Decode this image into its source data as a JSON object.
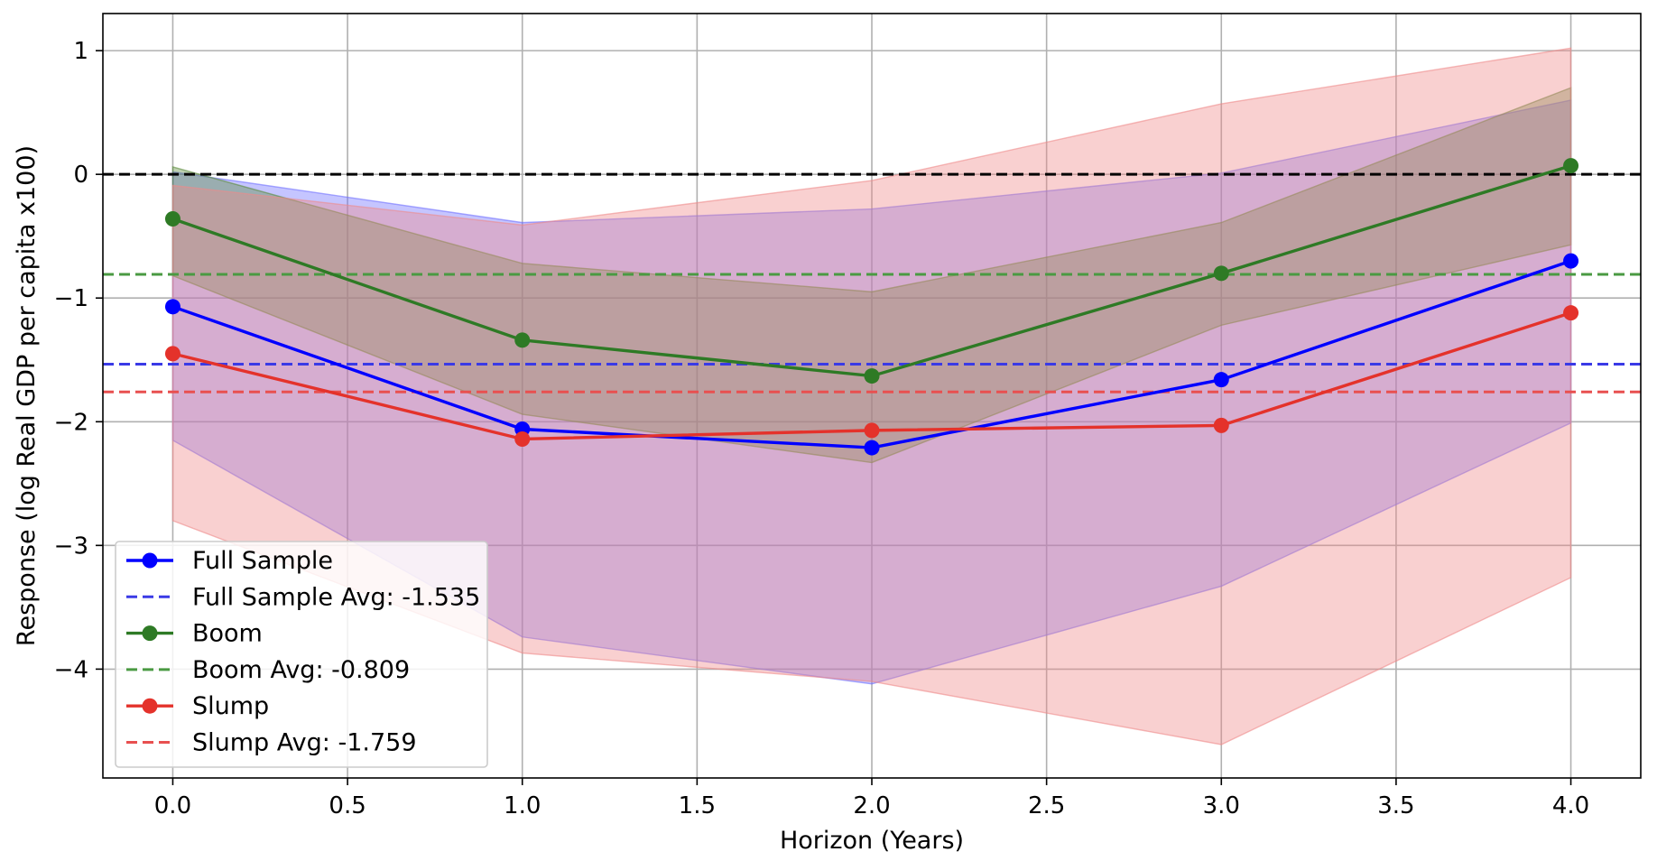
{
  "chart_data": {
    "type": "line",
    "xlabel": "Horizon (Years)",
    "ylabel": "Response (log Real GDP per capita x100)",
    "x": [
      0,
      1,
      2,
      3,
      4
    ],
    "xlim": [
      -0.2,
      4.2
    ],
    "ylim": [
      -4.88,
      1.3
    ],
    "xticks": [
      "0.0",
      "0.5",
      "1.0",
      "1.5",
      "2.0",
      "2.5",
      "3.0",
      "3.5",
      "4.0"
    ],
    "xtick_values": [
      0,
      0.5,
      1,
      1.5,
      2,
      2.5,
      3,
      3.5,
      4
    ],
    "yticks": [
      "1",
      "0",
      "−1",
      "−2",
      "−3",
      "−4"
    ],
    "ytick_values": [
      1,
      0,
      -1,
      -2,
      -3,
      -4
    ],
    "grid": true,
    "legend_position": "lower-left",
    "zero_line": {
      "value": 0,
      "color": "#000000",
      "style": "dashed"
    },
    "series": [
      {
        "name": "Full Sample",
        "color": "#0000ff",
        "values": [
          -1.07,
          -2.06,
          -2.21,
          -1.66,
          -0.7
        ],
        "ci_lower": [
          -2.15,
          -3.74,
          -4.12,
          -3.33,
          -2.01
        ],
        "ci_upper": [
          0.02,
          -0.39,
          -0.28,
          0.01,
          0.6
        ],
        "band_color": "#6f6fff",
        "average": -1.535,
        "average_label": "Full Sample Avg: -1.535",
        "average_color": "#3a3ae6"
      },
      {
        "name": "Boom",
        "color": "#2e7a25",
        "values": [
          -0.36,
          -1.34,
          -1.63,
          -0.8,
          0.07
        ],
        "ci_lower": [
          -0.82,
          -1.94,
          -2.33,
          -1.22,
          -0.57
        ],
        "ci_upper": [
          0.06,
          -0.72,
          -0.95,
          -0.39,
          0.7
        ],
        "band_color": "#5a8a3a",
        "average": -0.809,
        "average_label": "Boom Avg: -0.809",
        "average_color": "#4a9a42"
      },
      {
        "name": "Slump",
        "color": "#e4322b",
        "values": [
          -1.45,
          -2.14,
          -2.07,
          -2.03,
          -1.12
        ],
        "ci_lower": [
          -2.8,
          -3.87,
          -4.1,
          -4.61,
          -3.26
        ],
        "ci_upper": [
          -0.09,
          -0.41,
          -0.05,
          0.57,
          1.02
        ],
        "band_color": "#ef8a8a",
        "average": -1.759,
        "average_label": "Slump Avg: -1.759",
        "average_color": "#e85050"
      }
    ]
  }
}
